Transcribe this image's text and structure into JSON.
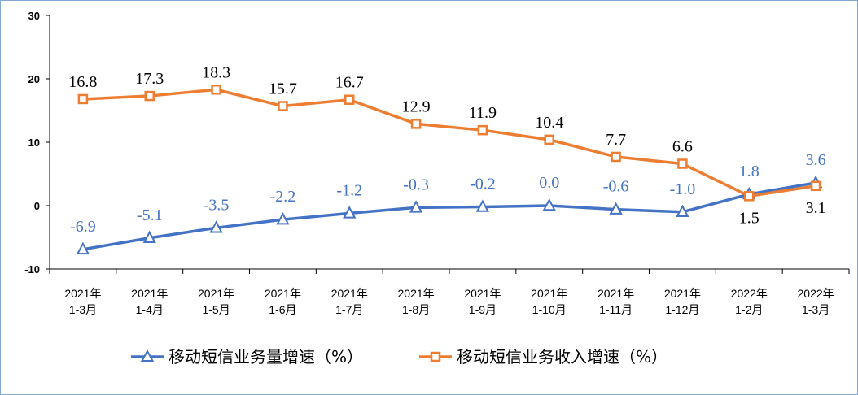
{
  "chart_data": {
    "type": "line",
    "title": "",
    "xlabel": "",
    "ylabel": "",
    "ylim": [
      -10,
      30
    ],
    "yticks": [
      "30",
      "20",
      "10",
      "0",
      "-10"
    ],
    "categories": [
      [
        "2021年",
        "1-3月"
      ],
      [
        "2021年",
        "1-4月"
      ],
      [
        "2021年",
        "1-5月"
      ],
      [
        "2021年",
        "1-6月"
      ],
      [
        "2021年",
        "1-7月"
      ],
      [
        "2021年",
        "1-8月"
      ],
      [
        "2021年",
        "1-9月"
      ],
      [
        "2021年",
        "1-10月"
      ],
      [
        "2021年",
        "1-11月"
      ],
      [
        "2021年",
        "1-12月"
      ],
      [
        "2022年",
        "1-2月"
      ],
      [
        "2022年",
        "1-3月"
      ]
    ],
    "series": [
      {
        "name": "移动短信业务量增速（%）",
        "color": "#4472c4",
        "marker": "triangle",
        "values": [
          -6.9,
          -5.1,
          -3.5,
          -2.2,
          -1.2,
          -0.3,
          -0.2,
          0.0,
          -0.6,
          -1.0,
          1.8,
          3.6
        ],
        "labels": [
          "-6.9",
          "-5.1",
          "-3.5",
          "-2.2",
          "-1.2",
          "-0.3",
          "-0.2",
          "0.0",
          "-0.6",
          "-1.0",
          "1.8",
          "3.6"
        ]
      },
      {
        "name": "移动短信业务收入增速（%）",
        "color": "#ed7d31",
        "marker": "square",
        "values": [
          16.8,
          17.3,
          18.3,
          15.7,
          16.7,
          12.9,
          11.9,
          10.4,
          7.7,
          6.6,
          1.5,
          3.1
        ],
        "labels": [
          "16.8",
          "17.3",
          "18.3",
          "15.7",
          "16.7",
          "12.9",
          "11.9",
          "10.4",
          "7.7",
          "6.6",
          "1.5",
          "3.1"
        ]
      }
    ],
    "grid": false,
    "legend": "bottom"
  }
}
